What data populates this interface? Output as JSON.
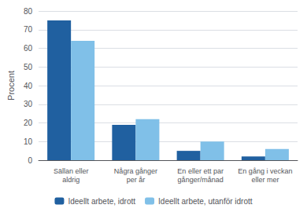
{
  "chart_data": {
    "type": "bar",
    "categories": [
      "Sällan eller\naldrig",
      "Några gånger\nper år",
      "En eller ett par\ngånger/månad",
      "En gång i veckan\neller mer"
    ],
    "series": [
      {
        "name": "Ideellt arbete, idrott",
        "color": "#2060a0",
        "values": [
          75,
          19,
          5,
          2
        ]
      },
      {
        "name": "Ideellt arbete, utanför idrott",
        "color": "#80c0e8",
        "values": [
          64,
          22,
          10,
          6
        ]
      }
    ],
    "ylabel": "Procent",
    "ylim": [
      0,
      80
    ],
    "yticks": [
      0,
      10,
      20,
      30,
      40,
      50,
      60,
      70,
      80
    ],
    "grid": true,
    "legend": "bottom"
  }
}
